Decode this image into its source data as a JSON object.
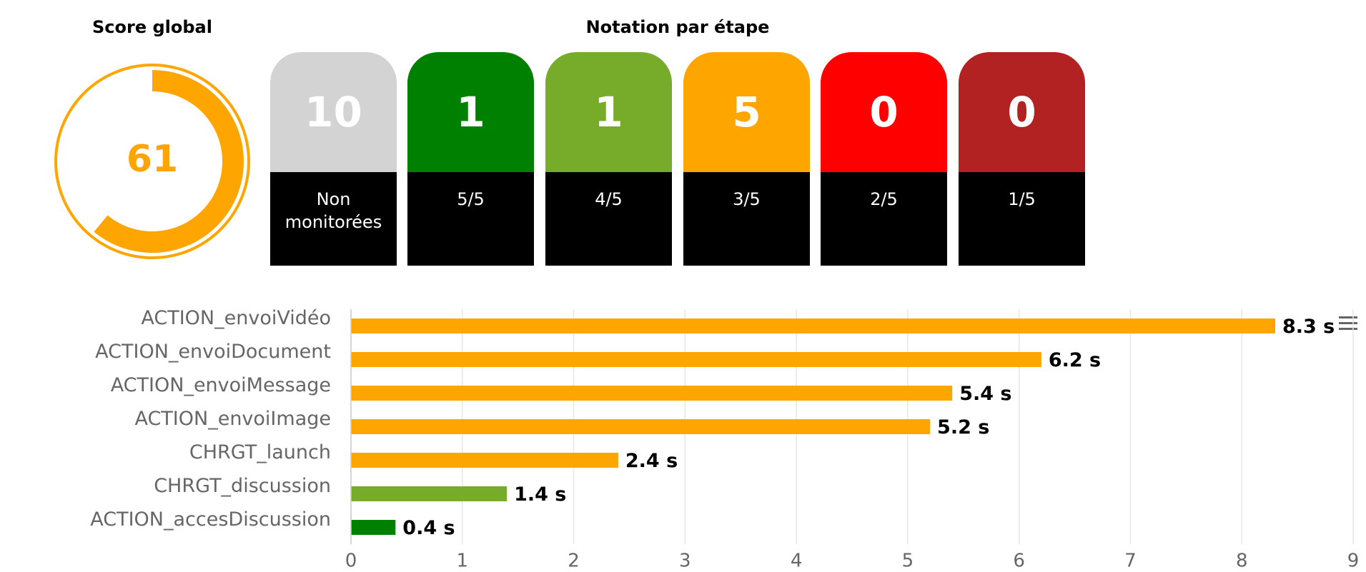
{
  "score": {
    "title": "Score global",
    "value": 61,
    "color": "#ffa500"
  },
  "rating": {
    "title": "Notation par étape",
    "cards": [
      {
        "count": 10,
        "label": "Non monitorées",
        "color": "#d3d3d3"
      },
      {
        "count": 1,
        "label": "5/5",
        "color": "#008000"
      },
      {
        "count": 1,
        "label": "4/5",
        "color": "#77ab2a"
      },
      {
        "count": 5,
        "label": "3/5",
        "color": "#ffa500"
      },
      {
        "count": 0,
        "label": "2/5",
        "color": "#ff0000"
      },
      {
        "count": 0,
        "label": "1/5",
        "color": "#b22222"
      }
    ]
  },
  "chart_data": {
    "type": "bar",
    "orientation": "horizontal",
    "categories": [
      "ACTION_envoiVidéo",
      "ACTION_envoiDocument",
      "ACTION_envoiMessage",
      "ACTION_envoiImage",
      "CHRGT_launch",
      "CHRGT_discussion",
      "ACTION_accesDiscussion"
    ],
    "values": [
      8.3,
      6.2,
      5.4,
      5.2,
      2.4,
      1.4,
      0.4
    ],
    "value_labels": [
      "8.3 s",
      "6.2 s",
      "5.4 s",
      "5.2 s",
      "2.4 s",
      "1.4 s",
      "0.4 s"
    ],
    "colors": [
      "#ffa500",
      "#ffa500",
      "#ffa500",
      "#ffa500",
      "#ffa500",
      "#77ab2a",
      "#008000"
    ],
    "xlim": [
      0,
      9
    ],
    "xticks": [
      0,
      1,
      2,
      3,
      4,
      5,
      6,
      7,
      8,
      9
    ],
    "grid": true
  }
}
